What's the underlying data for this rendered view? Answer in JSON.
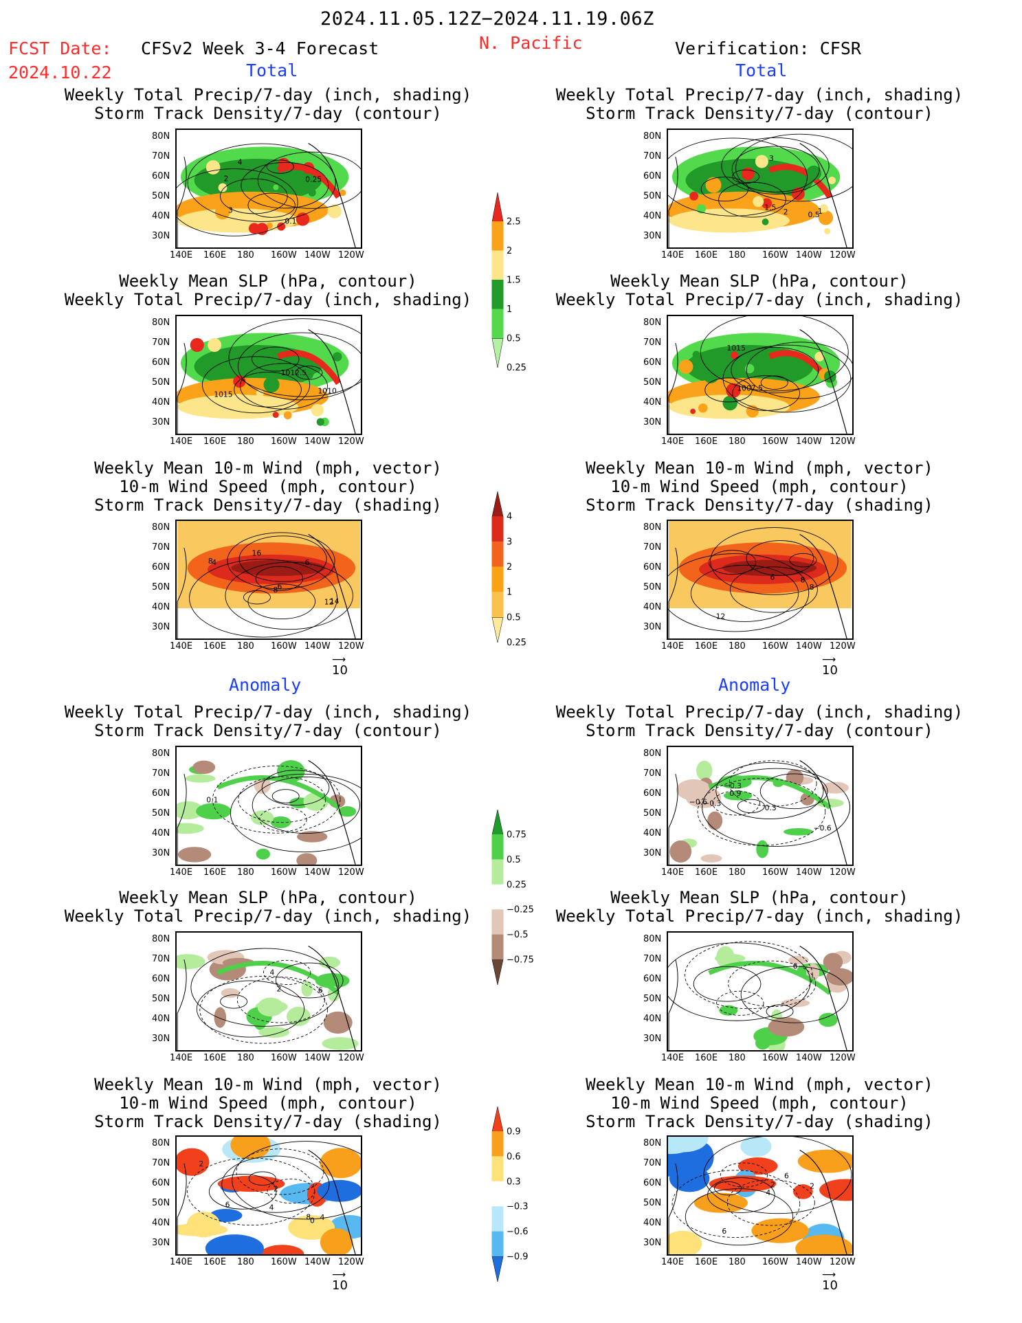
{
  "header": {
    "date_range": "2024.11.05.12Z−2024.11.19.06Z",
    "fcst_label": "FCST Date:",
    "fcst_date": "2024.10.22",
    "model_title": "CFSv2 Week 3-4 Forecast",
    "region": "N. Pacific",
    "verification": "Verification: CFSR"
  },
  "sections": {
    "total": "Total",
    "anomaly": "Anomaly"
  },
  "panel_titles": {
    "precip_storm": [
      "Weekly Total Precip/7-day (inch, shading)",
      "Storm Track Density/7-day (contour)"
    ],
    "slp_precip": [
      "Weekly Mean SLP (hPa, contour)",
      "Weekly Total Precip/7-day (inch, shading)"
    ],
    "wind_storm": [
      "Weekly Mean 10-m Wind (mph, vector)",
      "10-m Wind Speed (mph, contour)",
      "Storm Track Density/7-day (shading)"
    ]
  },
  "axes": {
    "lat": [
      "80N",
      "70N",
      "60N",
      "50N",
      "40N",
      "30N"
    ],
    "lon": [
      "140E",
      "160E",
      "180",
      "160W",
      "140W",
      "120W"
    ]
  },
  "vector_ref": "10",
  "colorbars": {
    "precip_total": {
      "labels": [
        "2.5",
        "2",
        "1.5",
        "1",
        "0.5",
        "0.25"
      ],
      "colors": [
        "#e8281c",
        "#f9a21a",
        "#fde58a",
        "#219a2a",
        "#52d94c",
        "#b4f0a4"
      ]
    },
    "storm_total": {
      "labels": [
        "4",
        "3",
        "2",
        "1",
        "0.5",
        "0.25"
      ],
      "colors": [
        "#9b1c14",
        "#dc2a1c",
        "#f2641c",
        "#f8a214",
        "#f8c24c",
        "#fbe99c"
      ]
    },
    "precip_anom": {
      "labels": [
        "0.75",
        "0.5",
        "0.25",
        "−0.25",
        "−0.5",
        "−0.75"
      ],
      "colors": [
        "#1f9a2c",
        "#4ed04a",
        "#b4ec9c",
        "#ffffff",
        "#e2c6b8",
        "#b48a78",
        "#6a4634"
      ]
    },
    "storm_anom": {
      "labels": [
        "0.9",
        "0.6",
        "0.3",
        "−0.3",
        "−0.6",
        "−0.9"
      ],
      "colors": [
        "#f0401c",
        "#f8a01c",
        "#fde27a",
        "#ffffff",
        "#b8e8f8",
        "#58b8f0",
        "#1e6ee0"
      ]
    }
  },
  "contour_labels": {
    "fc_precip_total": [
      "0.1",
      "4",
      "3",
      "2",
      "0.25"
    ],
    "ob_precip_total": [
      "0.5",
      "1",
      "1.5",
      "3",
      "2"
    ],
    "fc_slp_total": [
      "1015",
      "1012.5",
      "1010"
    ],
    "ob_slp_total": [
      "1007.5",
      "1015"
    ],
    "fc_wind_total": [
      "6",
      "12",
      "8",
      "6",
      "16",
      "14",
      "4",
      "8"
    ],
    "ob_wind_total": [
      "8",
      "6",
      "8",
      "12"
    ],
    "fc_precip_anom": [
      "0.1"
    ],
    "ob_precip_anom": [
      "0.9",
      "−0.6",
      "0.3",
      "−0.6",
      "−0.3",
      "−0.3"
    ],
    "fc_slp_anom": [
      "4",
      "2",
      "6"
    ],
    "ob_slp_anom": [
      "6"
    ],
    "fc_wind_anom": [
      "2",
      "4",
      "2",
      "6",
      "8",
      "4",
      "0"
    ],
    "ob_wind_anom": [
      "6",
      "4",
      "2",
      "2",
      "6"
    ]
  }
}
